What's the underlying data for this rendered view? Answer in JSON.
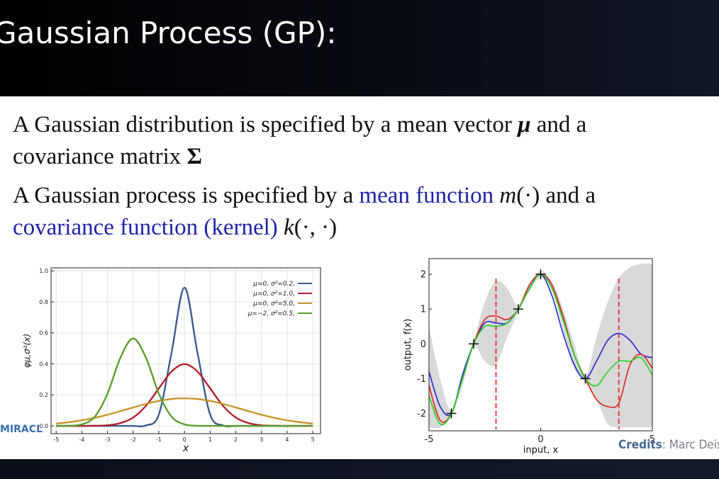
{
  "header": {
    "title": "Gaussian Process (GP):"
  },
  "bullets": [
    {
      "parts": [
        "A Gaussian distribution is specified by a mean vector ",
        "μ",
        " and a",
        "covariance matrix ",
        "Σ"
      ]
    },
    {
      "parts": [
        "A Gaussian process is specified by a ",
        "mean function",
        "m",
        "(·) and a",
        "covariance function (kernel)",
        "k",
        "(·, ·)"
      ]
    }
  ],
  "credits": {
    "label": "Credits",
    "text": ": Marc Deis"
  },
  "logo": {
    "text": "MIRACL"
  },
  "chart_data": [
    {
      "type": "line",
      "xlabel": "x",
      "ylabel": "φμ,σ²(x)",
      "x": [
        -5,
        -4.5,
        -4,
        -3.5,
        -3,
        -2.5,
        -2,
        -1.5,
        -1,
        -0.5,
        0,
        0.5,
        1,
        1.5,
        2,
        2.5,
        3,
        3.5,
        4,
        4.5,
        5
      ],
      "series": [
        {
          "name": "μ=0,  σ²=0.2,",
          "color": "#3e5b8f",
          "values": [
            0,
            0,
            0,
            0,
            0,
            0,
            0,
            0.003,
            0.073,
            0.477,
            0.892,
            0.477,
            0.073,
            0.003,
            0,
            0,
            0,
            0,
            0,
            0,
            0
          ]
        },
        {
          "name": "μ=0,  σ²=1.0,",
          "color": "#b3212d",
          "values": [
            0,
            0,
            0,
            0.001,
            0.004,
            0.018,
            0.054,
            0.13,
            0.242,
            0.352,
            0.399,
            0.352,
            0.242,
            0.13,
            0.054,
            0.018,
            0.004,
            0.001,
            0,
            0,
            0
          ]
        },
        {
          "name": "μ=0,  σ²=5.0,",
          "color": "#c8952c",
          "values": [
            0.015,
            0.024,
            0.036,
            0.052,
            0.072,
            0.095,
            0.119,
            0.142,
            0.161,
            0.174,
            0.178,
            0.174,
            0.161,
            0.142,
            0.119,
            0.095,
            0.072,
            0.052,
            0.036,
            0.024,
            0.015
          ]
        },
        {
          "name": "μ=−2,  σ²=0.5,",
          "color": "#5a9f2e",
          "values": [
            0,
            0.001,
            0.01,
            0.059,
            0.208,
            0.439,
            0.564,
            0.439,
            0.208,
            0.059,
            0.01,
            0.001,
            0,
            0,
            0,
            0,
            0,
            0,
            0,
            0,
            0
          ]
        }
      ],
      "xlim": [
        -5.2,
        5.3
      ],
      "ylim": [
        -0.05,
        1.02
      ],
      "xticks": [
        -5,
        -4,
        -3,
        -2,
        -1,
        0,
        1,
        2,
        3,
        4,
        5
      ],
      "yticks": [
        {
          "value": 0,
          "label": "0.0"
        },
        0.2,
        0.4,
        0.6,
        0.8,
        {
          "value": 1,
          "label": "1.0"
        }
      ],
      "grid": true,
      "legend": "upper right"
    },
    {
      "type": "line",
      "xlabel": "input, x",
      "ylabel": "output, f(x)",
      "x": [
        -5,
        -4.5,
        -4,
        -3.5,
        -3,
        -2.5,
        -2,
        -1.5,
        -1,
        -0.5,
        0,
        0.5,
        1,
        1.5,
        2,
        2.5,
        3,
        3.5,
        4,
        4.5,
        5
      ],
      "band": {
        "color": "#d9d9d9",
        "upper": [
          0.5,
          -1.0,
          -1.9,
          -0.8,
          0.1,
          1.2,
          1.8,
          1.6,
          1.1,
          1.7,
          2.1,
          1.8,
          1.0,
          0.0,
          -0.9,
          0.2,
          1.2,
          1.9,
          2.2,
          2.3,
          2.3
        ],
        "lower": [
          -2.4,
          -2.4,
          -2.1,
          -1.2,
          -0.1,
          -0.5,
          -0.6,
          0.2,
          0.9,
          1.5,
          1.9,
          1.6,
          0.4,
          -0.7,
          -1.1,
          -1.6,
          -2.3,
          -2.4,
          -2.4,
          -2.4,
          -2.4
        ]
      },
      "series": [
        {
          "color": "#2424d0",
          "values": [
            -0.8,
            -1.8,
            -2.0,
            -0.9,
            0.0,
            0.6,
            0.6,
            0.6,
            1.0,
            1.6,
            2.0,
            1.4,
            0.3,
            -0.6,
            -1.0,
            -0.5,
            0.1,
            0.3,
            0.1,
            -0.3,
            -0.4
          ]
        },
        {
          "color": "#e02020",
          "values": [
            -1.2,
            -2.2,
            -2.0,
            -1.0,
            0.0,
            0.7,
            0.8,
            0.7,
            1.0,
            1.7,
            2.0,
            1.7,
            0.8,
            -0.3,
            -1.0,
            -1.6,
            -1.8,
            -1.7,
            -0.6,
            -0.3,
            -0.7
          ]
        },
        {
          "color": "#20d020",
          "values": [
            -1.5,
            -2.3,
            -2.0,
            -1.0,
            0.0,
            0.5,
            0.5,
            0.6,
            1.0,
            1.6,
            2.0,
            1.6,
            0.7,
            -0.3,
            -1.0,
            -1.2,
            -0.8,
            -0.5,
            -0.5,
            -0.4,
            -0.9
          ]
        }
      ],
      "observations": {
        "x": [
          -4,
          -3,
          -1,
          0,
          2
        ],
        "y": [
          -2,
          0,
          1,
          2,
          -1
        ]
      },
      "xlim": [
        -5,
        5
      ],
      "ylim": [
        -2.5,
        2.45
      ],
      "xticks": [
        -5,
        0,
        5
      ],
      "yticks": [
        -2,
        -1,
        0,
        1,
        2
      ],
      "grid": false
    }
  ]
}
